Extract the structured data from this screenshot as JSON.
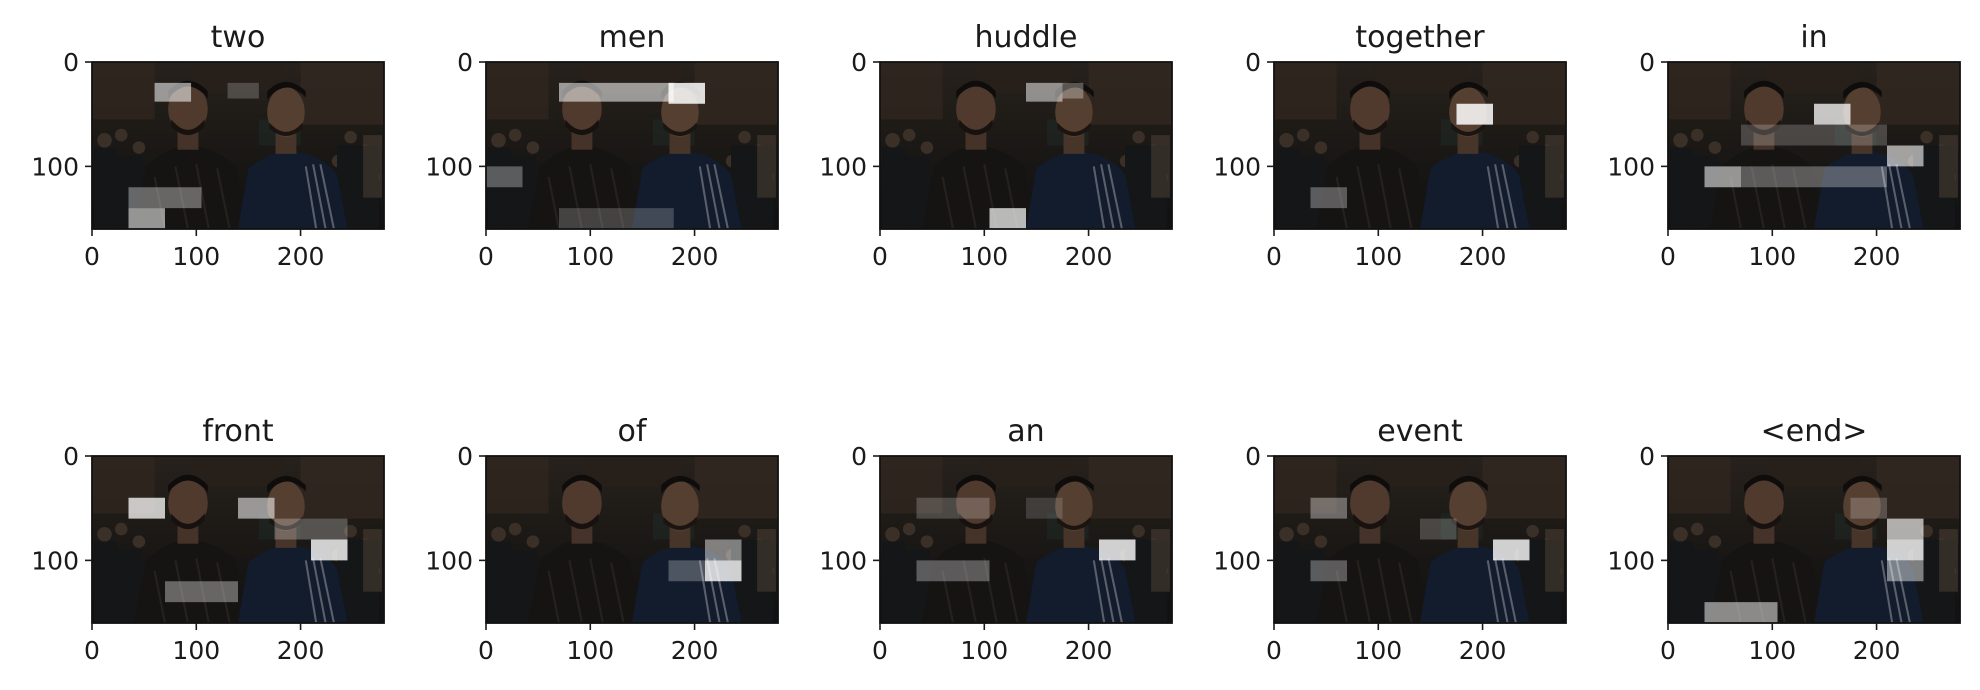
{
  "chart_data": {
    "type": "image-grid",
    "image_width": 280,
    "image_height": 160,
    "x_ticks": [
      "0",
      "100",
      "200"
    ],
    "y_ticks": [
      "0",
      "100"
    ],
    "colors": {
      "scene_dark": "#2a2724",
      "scene_mid": "#4a4038",
      "jacket_blue": "#1d2b45",
      "highlight": "#ffffff"
    },
    "panels": [
      {
        "title": "two",
        "highlights": [
          [
            60,
            20,
            35,
            18,
            0.55
          ],
          [
            35,
            120,
            70,
            20,
            0.35
          ],
          [
            35,
            140,
            35,
            20,
            0.55
          ],
          [
            130,
            20,
            30,
            15,
            0.2
          ]
        ]
      },
      {
        "title": "men",
        "highlights": [
          [
            70,
            20,
            110,
            18,
            0.55
          ],
          [
            175,
            20,
            35,
            20,
            0.85
          ],
          [
            0,
            100,
            35,
            20,
            0.3
          ],
          [
            70,
            140,
            110,
            20,
            0.2
          ]
        ]
      },
      {
        "title": "huddle",
        "highlights": [
          [
            140,
            20,
            35,
            18,
            0.5
          ],
          [
            105,
            140,
            35,
            20,
            0.7
          ],
          [
            175,
            20,
            20,
            15,
            0.3
          ]
        ]
      },
      {
        "title": "together",
        "highlights": [
          [
            175,
            40,
            35,
            20,
            0.85
          ],
          [
            35,
            120,
            35,
            20,
            0.3
          ]
        ]
      },
      {
        "title": "in",
        "highlights": [
          [
            140,
            40,
            35,
            20,
            0.75
          ],
          [
            210,
            80,
            35,
            20,
            0.6
          ],
          [
            35,
            100,
            35,
            20,
            0.55
          ],
          [
            70,
            60,
            140,
            20,
            0.2
          ],
          [
            70,
            100,
            140,
            20,
            0.3
          ]
        ]
      },
      {
        "title": "front",
        "highlights": [
          [
            35,
            40,
            35,
            20,
            0.75
          ],
          [
            140,
            40,
            35,
            20,
            0.55
          ],
          [
            210,
            80,
            35,
            20,
            0.8
          ],
          [
            70,
            120,
            70,
            20,
            0.35
          ],
          [
            175,
            60,
            70,
            20,
            0.25
          ]
        ]
      },
      {
        "title": "of",
        "highlights": [
          [
            210,
            80,
            35,
            20,
            0.45
          ],
          [
            210,
            100,
            35,
            20,
            0.8
          ],
          [
            175,
            100,
            35,
            20,
            0.25
          ]
        ]
      },
      {
        "title": "an",
        "highlights": [
          [
            210,
            80,
            35,
            20,
            0.8
          ],
          [
            35,
            100,
            70,
            20,
            0.3
          ],
          [
            35,
            40,
            70,
            20,
            0.2
          ],
          [
            140,
            40,
            35,
            20,
            0.15
          ]
        ]
      },
      {
        "title": "event",
        "highlights": [
          [
            210,
            80,
            35,
            20,
            0.8
          ],
          [
            35,
            40,
            35,
            20,
            0.35
          ],
          [
            35,
            100,
            35,
            20,
            0.3
          ],
          [
            140,
            60,
            35,
            20,
            0.2
          ]
        ]
      },
      {
        "title": "<end>",
        "highlights": [
          [
            210,
            60,
            35,
            20,
            0.65
          ],
          [
            210,
            80,
            35,
            20,
            0.8
          ],
          [
            210,
            100,
            35,
            20,
            0.45
          ],
          [
            35,
            140,
            70,
            20,
            0.5
          ],
          [
            175,
            40,
            35,
            20,
            0.2
          ]
        ]
      }
    ]
  }
}
